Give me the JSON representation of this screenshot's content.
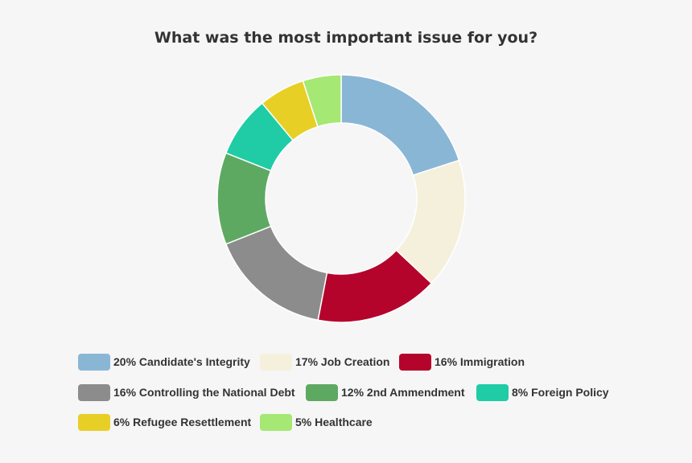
{
  "chart_data": {
    "type": "pie",
    "title": "What was the most important issue for you?",
    "donut": true,
    "legend_position": "bottom",
    "slices": [
      {
        "label": "20% Candidate's Integrity",
        "value": 20,
        "color": "#8ab6d6"
      },
      {
        "label": "17% Job Creation",
        "value": 17,
        "color": "#f5f0dc"
      },
      {
        "label": "16% Immigration",
        "value": 16,
        "color": "#b4042c"
      },
      {
        "label": "16% Controlling the National Debt",
        "value": 16,
        "color": "#8c8c8c"
      },
      {
        "label": "12% 2nd Ammendment",
        "value": 12,
        "color": "#5ea962"
      },
      {
        "label": "8% Foreign Policy",
        "value": 8,
        "color": "#1fcca5"
      },
      {
        "label": "6% Refugee Resettlement",
        "value": 6,
        "color": "#e8cf26"
      },
      {
        "label": "5% Healthcare",
        "value": 5,
        "color": "#a5e874"
      }
    ]
  }
}
